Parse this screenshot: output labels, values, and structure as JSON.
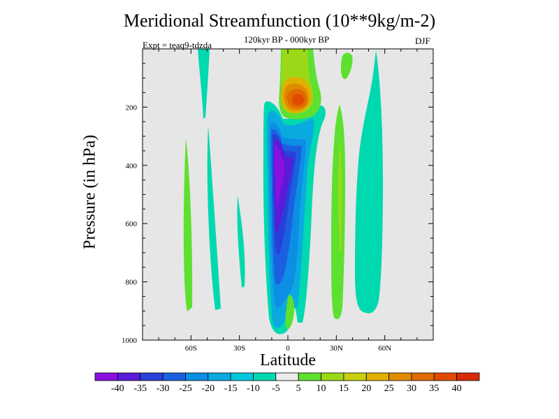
{
  "chart_data": {
    "type": "heatmap",
    "title": "Meridional Streamfunction (10**9kg/m-2)",
    "subtitle": "120kyr BP - 000kyr BP",
    "left_label": "Expt = teaq9-tdzda",
    "right_label": "DJF",
    "xlabel": "Latitude",
    "ylabel": "Pressure (in hPa)",
    "xlim": [
      -90,
      90
    ],
    "ylim": [
      1000,
      0
    ],
    "x_ticks": [
      -60,
      -30,
      0,
      30,
      60
    ],
    "x_tick_labels": [
      "60S",
      "30S",
      "0",
      "30N",
      "60N"
    ],
    "y_ticks": [
      200,
      400,
      600,
      800,
      1000
    ],
    "y_tick_labels": [
      "200",
      "400",
      "600",
      "800",
      "1000"
    ],
    "levels": [
      -40,
      -35,
      -30,
      -25,
      -20,
      -15,
      -10,
      -5,
      5,
      10,
      15,
      20,
      25,
      30,
      35,
      40
    ],
    "colorbar_labels": [
      "-40",
      "-35",
      "-30",
      "-25",
      "-20",
      "-15",
      "-10",
      "-5",
      "5",
      "10",
      "15",
      "20",
      "25",
      "30",
      "35",
      "40"
    ],
    "colorbar_colors": [
      "#8a10e0",
      "#5a1ad8",
      "#2840d8",
      "#1b60e0",
      "#0c8ee4",
      "#0aaae0",
      "#00c8dc",
      "#00d8b0",
      "#ececec",
      "#5ee030",
      "#9cd818",
      "#c8d010",
      "#e0b000",
      "#e08a00",
      "#e06a00",
      "#e04a00",
      "#d82a08"
    ],
    "background_color": "#e6e6e6",
    "contour_features": [
      {
        "name": "upper-tropical-positive-cell",
        "lat": [
          -2,
          12
        ],
        "pressure": [
          0,
          220
        ],
        "peak_value": 35
      },
      {
        "name": "southern-tropical-negative-cell",
        "lat": [
          -10,
          10
        ],
        "pressure": [
          170,
          980
        ],
        "peak_value": -40
      },
      {
        "name": "southern-subtropical-band",
        "lat": [
          -50,
          -30
        ],
        "pressure": [
          100,
          900
        ],
        "peak_value": -10
      },
      {
        "name": "southern-midlatitude-positive-band",
        "lat": [
          -68,
          -61
        ],
        "pressure": [
          300,
          900
        ],
        "peak_value": 10
      },
      {
        "name": "northern-subtropical-positive-band",
        "lat": [
          26,
          35
        ],
        "pressure": [
          170,
          930
        ],
        "peak_value": 10
      },
      {
        "name": "northern-midlatitude-negative-band",
        "lat": [
          44,
          59
        ],
        "pressure": [
          20,
          910
        ],
        "peak_value": -10
      },
      {
        "name": "polar-upper-negative-band",
        "lat": [
          -55,
          -48
        ],
        "pressure": [
          0,
          230
        ],
        "peak_value": -10
      }
    ]
  }
}
